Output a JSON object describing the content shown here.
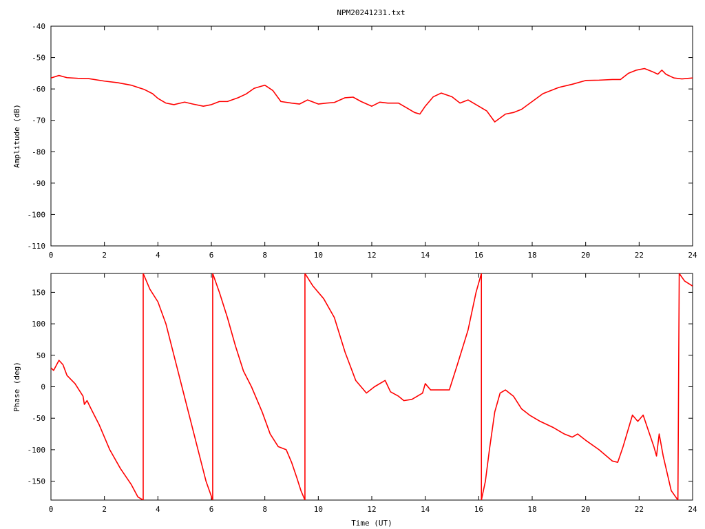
{
  "title": "NPM20241231.txt",
  "colors": {
    "series": "#ff0000",
    "axes": "#000000",
    "background": "#ffffff"
  },
  "chart_data": [
    {
      "type": "line",
      "title": "NPM20241231.txt",
      "xlabel": "",
      "ylabel": "Amplitude (dB)",
      "xlim": [
        0,
        24
      ],
      "ylim": [
        -110,
        -40
      ],
      "xticks": [
        "0",
        "2",
        "4",
        "6",
        "8",
        "10",
        "12",
        "14",
        "16",
        "18",
        "20",
        "22",
        "24"
      ],
      "yticks": [
        "-40",
        "-50",
        "-60",
        "-70",
        "-80",
        "-90",
        "-100",
        "-110"
      ],
      "grid": false,
      "series": [
        {
          "x": [
            0,
            0.3,
            0.6,
            1.0,
            1.4,
            2.0,
            2.5,
            3.0,
            3.5,
            3.8,
            4.0,
            4.3,
            4.6,
            5.0,
            5.3,
            5.7,
            6.0,
            6.3,
            6.6,
            7.0,
            7.3,
            7.6,
            8.0,
            8.3,
            8.6,
            9.0,
            9.3,
            9.6,
            10.0,
            10.3,
            10.6,
            11.0,
            11.3,
            11.6,
            12.0,
            12.3,
            12.6,
            13.0,
            13.3,
            13.6,
            13.8,
            14.0,
            14.3,
            14.6,
            15.0,
            15.3,
            15.6,
            16.0,
            16.3,
            16.6,
            17.0,
            17.3,
            17.6,
            18.0,
            18.4,
            19.0,
            19.5,
            20.0,
            20.5,
            21.0,
            21.3,
            21.6,
            21.9,
            22.2,
            22.5,
            22.7,
            22.85,
            23.0,
            23.3,
            23.6,
            24.0
          ],
          "y": [
            -56.5,
            -55.7,
            -56.4,
            -56.6,
            -56.7,
            -57.5,
            -58,
            -58.8,
            -60.2,
            -61.5,
            -63,
            -64.5,
            -65,
            -64.2,
            -64.8,
            -65.5,
            -65,
            -64,
            -64,
            -62.8,
            -61.6,
            -59.8,
            -58.8,
            -60.5,
            -64,
            -64.5,
            -64.8,
            -63.5,
            -64.8,
            -64.5,
            -64.3,
            -62.8,
            -62.6,
            -64,
            -65.5,
            -64.2,
            -64.5,
            -64.5,
            -66,
            -67.5,
            -68,
            -65.5,
            -62.5,
            -61.3,
            -62.5,
            -64.5,
            -63.5,
            -65.5,
            -67,
            -70.5,
            -68,
            -67.5,
            -66.5,
            -64,
            -61.5,
            -59.5,
            -58.5,
            -57.3,
            -57.2,
            -57,
            -57,
            -55,
            -54,
            -53.5,
            -54.5,
            -55.3,
            -54,
            -55.3,
            -56.5,
            -56.8,
            -56.5
          ]
        }
      ]
    },
    {
      "type": "line",
      "title": "",
      "xlabel": "Time (UT)",
      "ylabel": "Phase (deg)",
      "xlim": [
        0,
        24
      ],
      "ylim": [
        -180,
        180
      ],
      "xticks": [
        "0",
        "2",
        "4",
        "6",
        "8",
        "10",
        "12",
        "14",
        "16",
        "18",
        "20",
        "22",
        "24"
      ],
      "yticks": [
        "150",
        "100",
        "50",
        "0",
        "-50",
        "-100",
        "-150"
      ],
      "grid": false,
      "series": [
        {
          "x": [
            0,
            0.1,
            0.3,
            0.45,
            0.6,
            0.9,
            1.2,
            1.25,
            1.35,
            1.5,
            1.8,
            2.2,
            2.6,
            3.0,
            3.25,
            3.45,
            3.45,
            3.7,
            4.0,
            4.3,
            4.6,
            4.9,
            5.2,
            5.5,
            5.8,
            6.05,
            6.05,
            6.3,
            6.6,
            6.9,
            7.2,
            7.5,
            7.9,
            8.2,
            8.5,
            8.8,
            9.0,
            9.2,
            9.35,
            9.5,
            9.5,
            9.8,
            10.2,
            10.6,
            11.0,
            11.4,
            11.8,
            12.1,
            12.5,
            12.7,
            13.0,
            13.2,
            13.5,
            13.9,
            14.0,
            14.2,
            14.6,
            14.9,
            15.2,
            15.6,
            15.9,
            16.1,
            16.1,
            16.25,
            16.4,
            16.6,
            16.8,
            17.0,
            17.3,
            17.6,
            17.9,
            18.3,
            18.8,
            19.2,
            19.5,
            19.7,
            20.0,
            20.5,
            21.0,
            21.2,
            21.4,
            21.75,
            21.95,
            22.15,
            22.35,
            22.55,
            22.65,
            22.75,
            22.9,
            23.2,
            23.45,
            23.5,
            23.7,
            24.0
          ],
          "y": [
            30,
            26,
            42,
            35,
            18,
            5,
            -15,
            -28,
            -22,
            -35,
            -60,
            -100,
            -130,
            -155,
            -175,
            -180,
            180,
            155,
            135,
            100,
            50,
            0,
            -50,
            -100,
            -150,
            -180,
            180,
            150,
            110,
            65,
            25,
            0,
            -40,
            -75,
            -95,
            -100,
            -120,
            -145,
            -165,
            -180,
            180,
            160,
            140,
            110,
            55,
            10,
            -10,
            0,
            10,
            -8,
            -15,
            -22,
            -20,
            -10,
            5,
            -5,
            -5,
            -5,
            35,
            90,
            150,
            180,
            -180,
            -150,
            -100,
            -40,
            -10,
            -5,
            -15,
            -35,
            -45,
            -55,
            -65,
            -75,
            -80,
            -75,
            -85,
            -100,
            -118,
            -120,
            -95,
            -45,
            -55,
            -45,
            -70,
            -95,
            -110,
            -75,
            -110,
            -165,
            -180,
            180,
            168,
            160
          ]
        }
      ]
    }
  ]
}
